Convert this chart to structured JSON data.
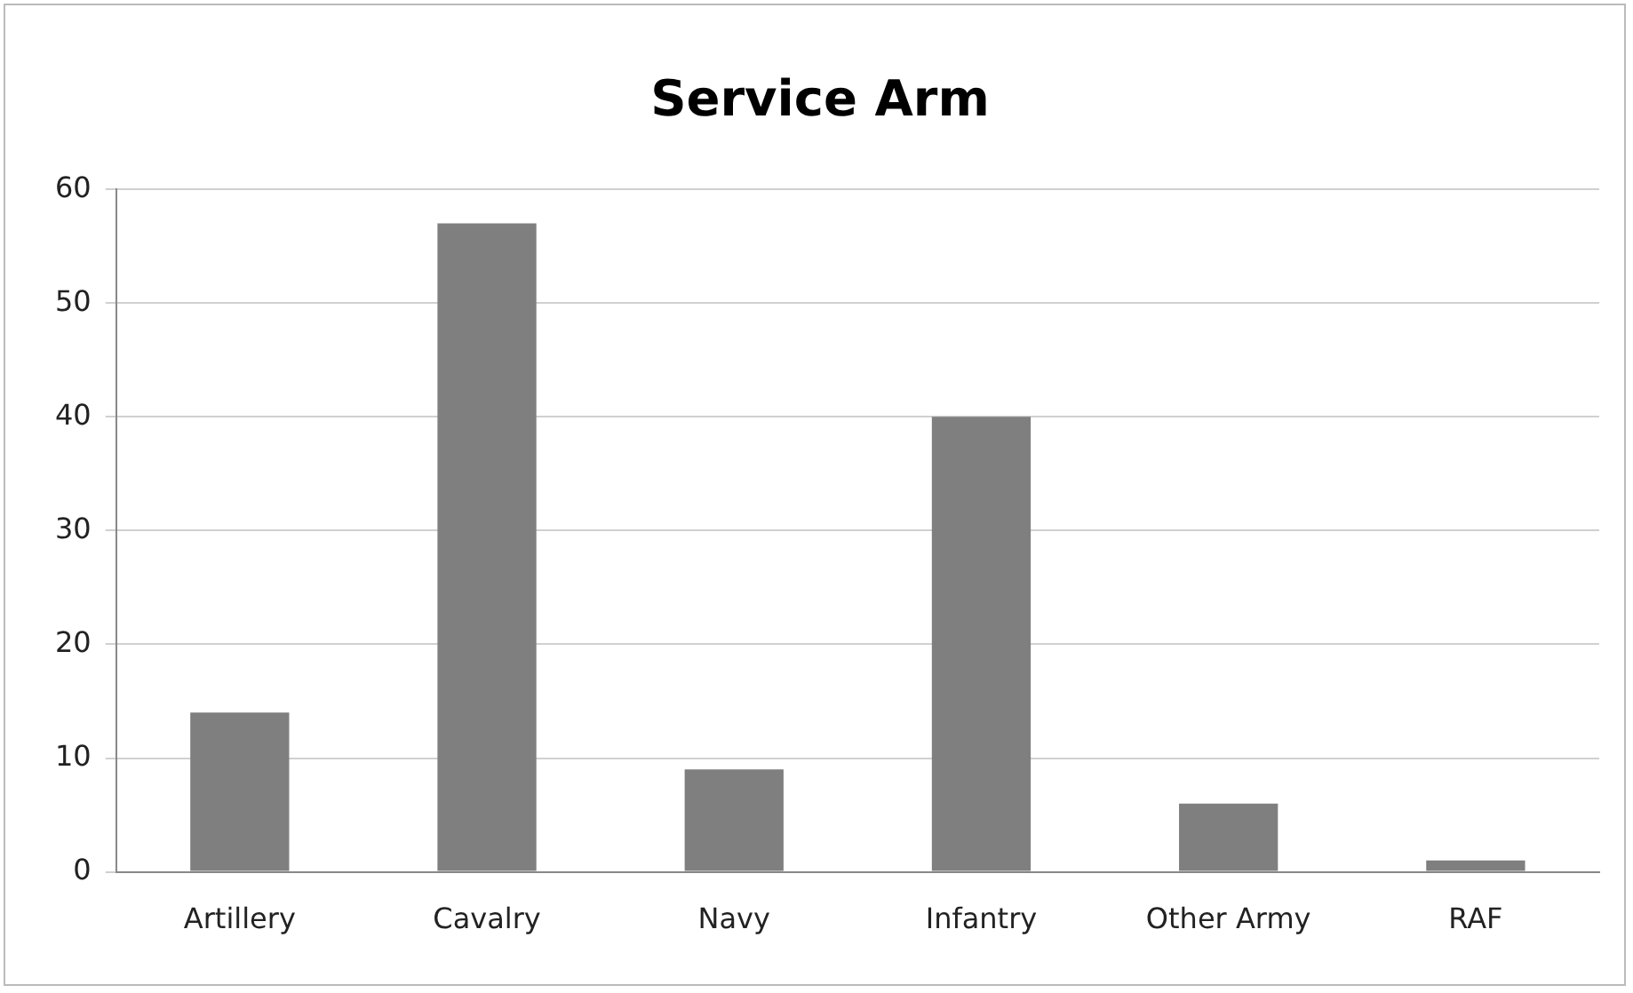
{
  "chart_data": {
    "type": "bar",
    "title": "Service Arm",
    "categories": [
      "Artillery",
      "Cavalry",
      "Navy",
      "Infantry",
      "Other Army",
      "RAF"
    ],
    "values": [
      14,
      57,
      9,
      40,
      6,
      1
    ],
    "color": "#7f7f7f",
    "ylim": [
      0,
      60
    ],
    "yticks": [
      0,
      10,
      20,
      30,
      40,
      50,
      60
    ],
    "grid": "y"
  }
}
